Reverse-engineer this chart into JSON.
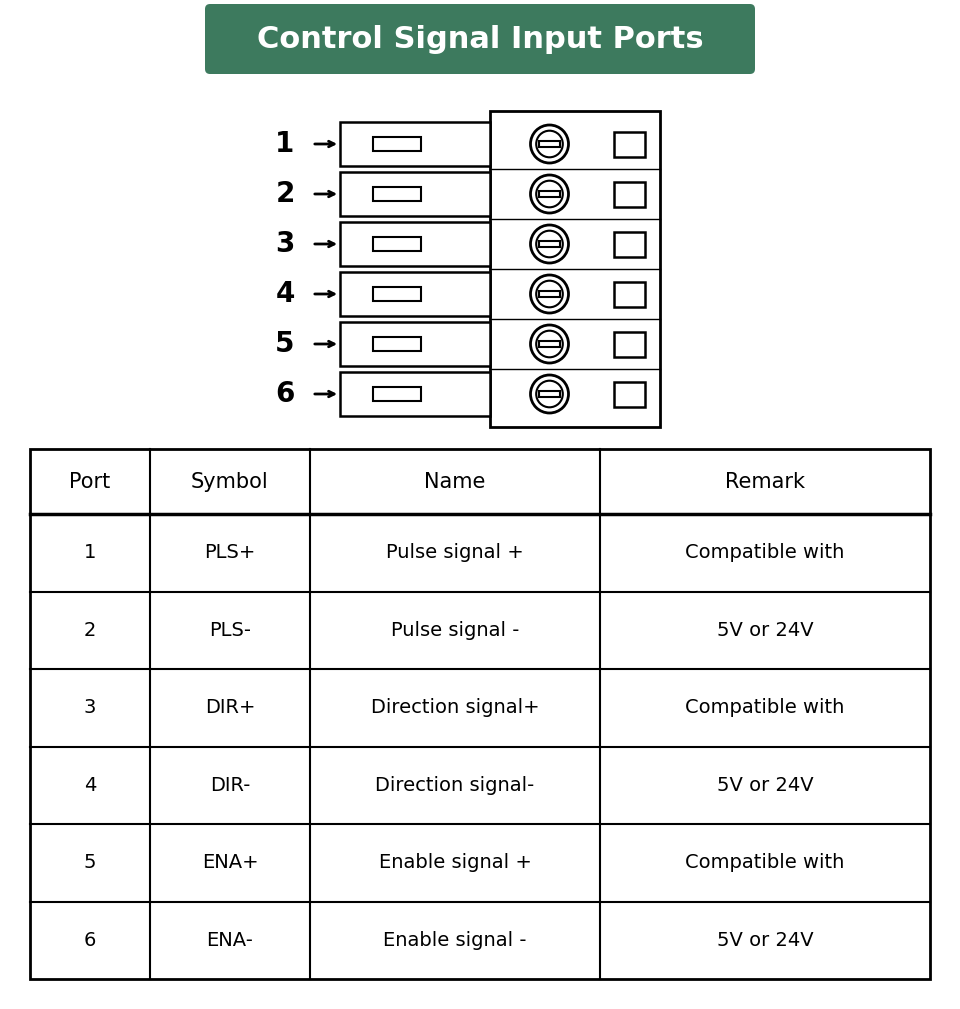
{
  "title": "Control Signal Input Ports",
  "title_bg_color": "#3d7a5e",
  "title_text_color": "#ffffff",
  "background_color": "#ffffff",
  "text_color": "#333333",
  "port_numbers": [
    1,
    2,
    3,
    4,
    5,
    6
  ],
  "table_headers": [
    "Port",
    "Symbol",
    "Name",
    "Remark"
  ],
  "table_data": [
    [
      "1",
      "PLS+",
      "Pulse signal +",
      "Compatible with"
    ],
    [
      "2",
      "PLS-",
      "Pulse signal -",
      "5V or 24V"
    ],
    [
      "3",
      "DIR+",
      "Direction signal+",
      "Compatible with"
    ],
    [
      "4",
      "DIR-",
      "Direction signal-",
      "5V or 24V"
    ],
    [
      "5",
      "ENA+",
      "Enable signal +",
      "Compatible with"
    ],
    [
      "6",
      "ENA-",
      "Enable signal -",
      "5V or 24V"
    ]
  ]
}
